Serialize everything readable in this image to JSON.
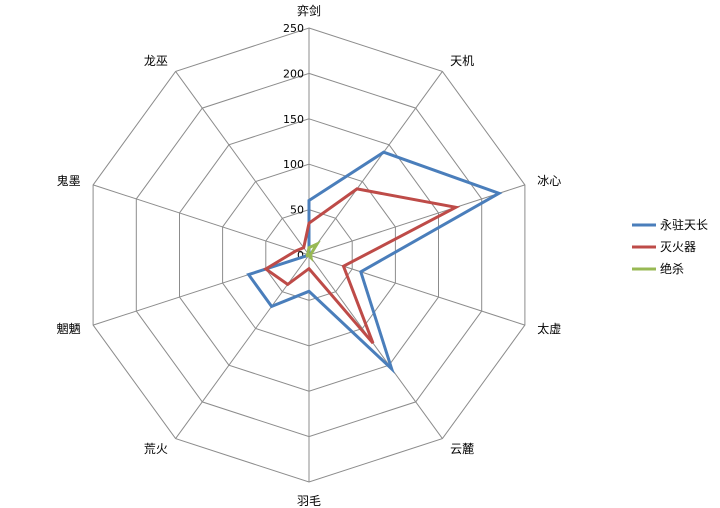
{
  "chart_data": {
    "type": "radar",
    "title": "",
    "categories": [
      "弈剑",
      "天机",
      "冰心",
      "太虚",
      "云麓",
      "羽毛",
      "荒火",
      "魍魉",
      "鬼墨",
      "龙巫"
    ],
    "rlim": [
      0,
      250
    ],
    "ticks": [
      0,
      50,
      100,
      150,
      200,
      250
    ],
    "grid": true,
    "legend_position": "right",
    "series": [
      {
        "name": "永驻天长",
        "color": "#4a7ebb",
        "values": [
          60,
          140,
          220,
          60,
          155,
          40,
          70,
          70,
          0,
          0
        ]
      },
      {
        "name": "灭火器",
        "color": "#be4b48",
        "values": [
          35,
          90,
          170,
          40,
          120,
          15,
          40,
          50,
          15,
          10
        ]
      },
      {
        "name": "绝杀",
        "color": "#98b954",
        "values": [
          8,
          15,
          2,
          2,
          4,
          1,
          1,
          2,
          2,
          2
        ]
      }
    ]
  }
}
